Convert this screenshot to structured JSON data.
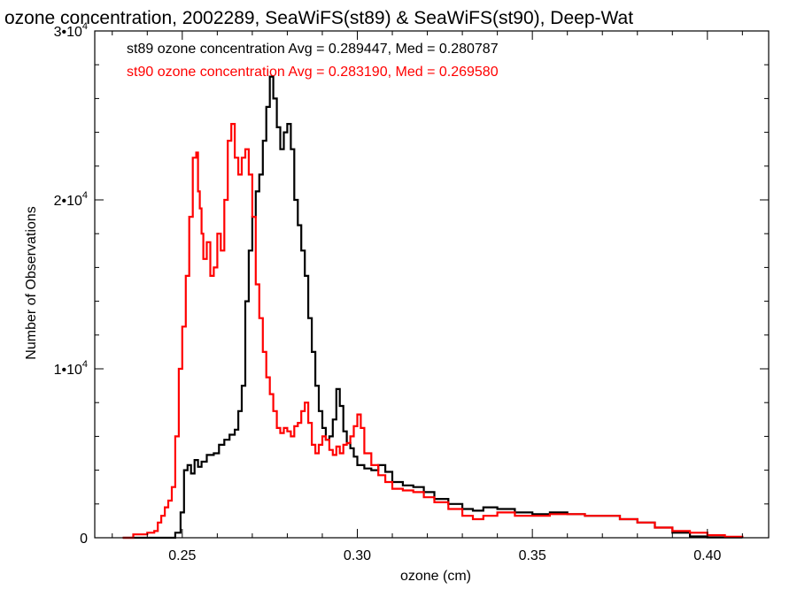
{
  "chart_data": {
    "type": "line",
    "title": "ozone concentration, 2002289, SeaWiFS(st89) & SeaWiFS(st90), Deep-Wat",
    "xlabel": "ozone (cm)",
    "ylabel": "Number of Observations",
    "xlim": [
      0.225,
      0.4175
    ],
    "ylim": [
      0,
      30000
    ],
    "grid": false,
    "legend_position": "top-left",
    "x_ticks": [
      {
        "value": 0.25,
        "label": "0.25"
      },
      {
        "value": 0.3,
        "label": "0.30"
      },
      {
        "value": 0.35,
        "label": "0.35"
      },
      {
        "value": 0.4,
        "label": "0.40"
      }
    ],
    "y_ticks": [
      {
        "value": 0,
        "label": "0",
        "exp": ""
      },
      {
        "value": 10000,
        "label": "1•10",
        "exp": "4"
      },
      {
        "value": 20000,
        "label": "2•10",
        "exp": "4"
      },
      {
        "value": 30000,
        "label": "3•10",
        "exp": "4"
      }
    ],
    "series": [
      {
        "name": "st89 ozone concentration Avg = 0.289447, Med = 0.280787",
        "color": "#000000",
        "points": [
          [
            0.233,
            0
          ],
          [
            0.245,
            0
          ],
          [
            0.248,
            300
          ],
          [
            0.2495,
            1500
          ],
          [
            0.2505,
            4000
          ],
          [
            0.2515,
            4300
          ],
          [
            0.2525,
            3800
          ],
          [
            0.2535,
            4600
          ],
          [
            0.2545,
            4200
          ],
          [
            0.2555,
            4500
          ],
          [
            0.257,
            4900
          ],
          [
            0.259,
            5000
          ],
          [
            0.2605,
            5500
          ],
          [
            0.262,
            5800
          ],
          [
            0.2635,
            6100
          ],
          [
            0.265,
            6400
          ],
          [
            0.266,
            7500
          ],
          [
            0.267,
            9000
          ],
          [
            0.268,
            14000
          ],
          [
            0.269,
            17000
          ],
          [
            0.27,
            19000
          ],
          [
            0.271,
            20500
          ],
          [
            0.272,
            21500
          ],
          [
            0.273,
            23500
          ],
          [
            0.274,
            25500
          ],
          [
            0.275,
            27300
          ],
          [
            0.276,
            26000
          ],
          [
            0.277,
            24300
          ],
          [
            0.278,
            23000
          ],
          [
            0.279,
            24000
          ],
          [
            0.28,
            24500
          ],
          [
            0.281,
            23000
          ],
          [
            0.282,
            20000
          ],
          [
            0.283,
            18500
          ],
          [
            0.284,
            17000
          ],
          [
            0.285,
            15500
          ],
          [
            0.286,
            13000
          ],
          [
            0.287,
            11000
          ],
          [
            0.288,
            9000
          ],
          [
            0.289,
            7500
          ],
          [
            0.29,
            6500
          ],
          [
            0.291,
            5800
          ],
          [
            0.292,
            6000
          ],
          [
            0.293,
            7000
          ],
          [
            0.294,
            8800
          ],
          [
            0.295,
            7800
          ],
          [
            0.296,
            6300
          ],
          [
            0.297,
            5600
          ],
          [
            0.298,
            5300
          ],
          [
            0.299,
            4800
          ],
          [
            0.3,
            4300
          ],
          [
            0.302,
            4100
          ],
          [
            0.304,
            4000
          ],
          [
            0.306,
            4300
          ],
          [
            0.308,
            3900
          ],
          [
            0.31,
            3300
          ],
          [
            0.313,
            3100
          ],
          [
            0.316,
            3000
          ],
          [
            0.319,
            2700
          ],
          [
            0.322,
            2300
          ],
          [
            0.326,
            2000
          ],
          [
            0.33,
            1700
          ],
          [
            0.333,
            1600
          ],
          [
            0.336,
            1800
          ],
          [
            0.34,
            1700
          ],
          [
            0.345,
            1500
          ],
          [
            0.35,
            1400
          ],
          [
            0.355,
            1500
          ],
          [
            0.36,
            1400
          ],
          [
            0.365,
            1300
          ],
          [
            0.37,
            1300
          ],
          [
            0.375,
            1100
          ],
          [
            0.38,
            900
          ],
          [
            0.385,
            600
          ],
          [
            0.39,
            300
          ],
          [
            0.395,
            80
          ],
          [
            0.4,
            20
          ],
          [
            0.41,
            0
          ]
        ]
      },
      {
        "name": "st90 ozone concentration Avg = 0.283190, Med = 0.269580",
        "color": "#ff0000",
        "points": [
          [
            0.233,
            0
          ],
          [
            0.236,
            200
          ],
          [
            0.24,
            300
          ],
          [
            0.242,
            400
          ],
          [
            0.243,
            900
          ],
          [
            0.244,
            1300
          ],
          [
            0.245,
            1800
          ],
          [
            0.246,
            2200
          ],
          [
            0.247,
            3000
          ],
          [
            0.248,
            6000
          ],
          [
            0.249,
            10000
          ],
          [
            0.25,
            12500
          ],
          [
            0.251,
            15500
          ],
          [
            0.252,
            19000
          ],
          [
            0.253,
            22500
          ],
          [
            0.254,
            22800
          ],
          [
            0.2545,
            20500
          ],
          [
            0.255,
            19500
          ],
          [
            0.2555,
            18000
          ],
          [
            0.256,
            16500
          ],
          [
            0.257,
            17500
          ],
          [
            0.258,
            15500
          ],
          [
            0.259,
            16000
          ],
          [
            0.26,
            18000
          ],
          [
            0.261,
            17000
          ],
          [
            0.262,
            20000
          ],
          [
            0.263,
            23500
          ],
          [
            0.264,
            24500
          ],
          [
            0.265,
            22500
          ],
          [
            0.266,
            21500
          ],
          [
            0.267,
            22500
          ],
          [
            0.268,
            23000
          ],
          [
            0.269,
            21500
          ],
          [
            0.27,
            19000
          ],
          [
            0.271,
            15000
          ],
          [
            0.272,
            13000
          ],
          [
            0.273,
            11000
          ],
          [
            0.274,
            9500
          ],
          [
            0.275,
            8500
          ],
          [
            0.276,
            7500
          ],
          [
            0.277,
            6500
          ],
          [
            0.278,
            6200
          ],
          [
            0.279,
            6500
          ],
          [
            0.28,
            6300
          ],
          [
            0.281,
            6000
          ],
          [
            0.282,
            6600
          ],
          [
            0.283,
            6800
          ],
          [
            0.284,
            7500
          ],
          [
            0.285,
            8000
          ],
          [
            0.286,
            6800
          ],
          [
            0.287,
            5500
          ],
          [
            0.288,
            5000
          ],
          [
            0.289,
            5500
          ],
          [
            0.29,
            6000
          ],
          [
            0.291,
            5800
          ],
          [
            0.292,
            5200
          ],
          [
            0.293,
            4900
          ],
          [
            0.294,
            5400
          ],
          [
            0.295,
            5000
          ],
          [
            0.296,
            5500
          ],
          [
            0.297,
            5600
          ],
          [
            0.298,
            6000
          ],
          [
            0.299,
            6600
          ],
          [
            0.3,
            7300
          ],
          [
            0.301,
            6500
          ],
          [
            0.302,
            5000
          ],
          [
            0.304,
            4300
          ],
          [
            0.306,
            3700
          ],
          [
            0.308,
            3300
          ],
          [
            0.31,
            2900
          ],
          [
            0.313,
            2800
          ],
          [
            0.316,
            2700
          ],
          [
            0.319,
            2400
          ],
          [
            0.322,
            2100
          ],
          [
            0.326,
            1700
          ],
          [
            0.33,
            1300
          ],
          [
            0.333,
            1100
          ],
          [
            0.336,
            1300
          ],
          [
            0.34,
            1500
          ],
          [
            0.345,
            1300
          ],
          [
            0.35,
            1300
          ],
          [
            0.355,
            1400
          ],
          [
            0.36,
            1400
          ],
          [
            0.365,
            1300
          ],
          [
            0.37,
            1300
          ],
          [
            0.375,
            1100
          ],
          [
            0.38,
            900
          ],
          [
            0.385,
            600
          ],
          [
            0.39,
            400
          ],
          [
            0.395,
            300
          ],
          [
            0.4,
            150
          ],
          [
            0.405,
            60
          ],
          [
            0.41,
            0
          ]
        ]
      }
    ]
  }
}
